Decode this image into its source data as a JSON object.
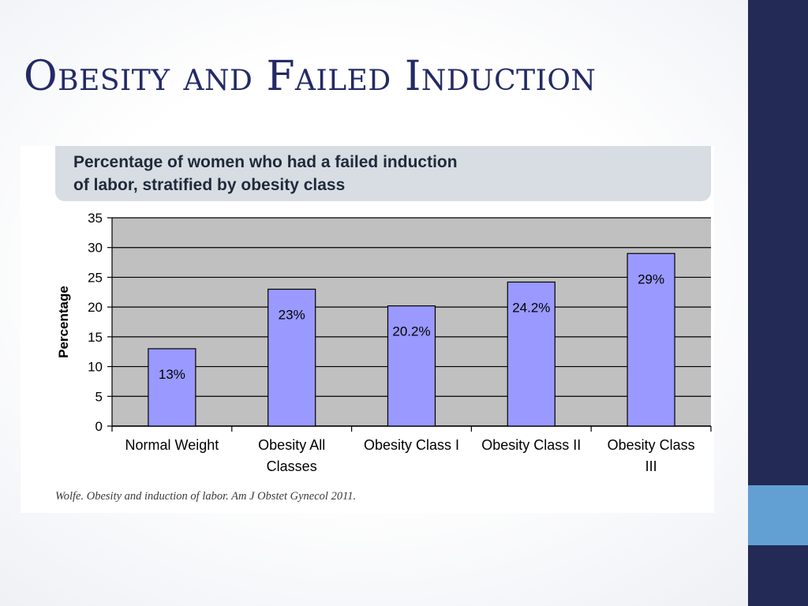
{
  "slide": {
    "title": "Obesity and Failed Induction",
    "source": "Wolfe. Obesity and induction of labor. Am J Obstet Gynecol 2011."
  },
  "colors": {
    "title": "#232a66",
    "sidebar": "#232a55",
    "sidebar_accent": "#62a0d4",
    "plot_background": "#c0c0c0",
    "bar_fill": "#9999ff",
    "bar_stroke": "#000000",
    "heading_background": "#d8dde3"
  },
  "chart_data": {
    "type": "bar",
    "title_lines": [
      "Percentage of women who had a failed induction",
      "of labor, stratified by obesity class"
    ],
    "xlabel": "",
    "ylabel": "Percentage",
    "categories": [
      [
        "Normal Weight"
      ],
      [
        "Obesity All",
        "Classes"
      ],
      [
        "Obesity Class I"
      ],
      [
        "Obesity Class II"
      ],
      [
        "Obesity Class",
        "III"
      ]
    ],
    "values": [
      13,
      23,
      20.2,
      24.2,
      29
    ],
    "data_labels": [
      "13%",
      "23%",
      "20.2%",
      "24.2%",
      "29%"
    ],
    "ylim": [
      0,
      35
    ],
    "yticks": [
      0,
      5,
      10,
      15,
      20,
      25,
      30,
      35
    ],
    "grid": true,
    "legend": "none"
  }
}
